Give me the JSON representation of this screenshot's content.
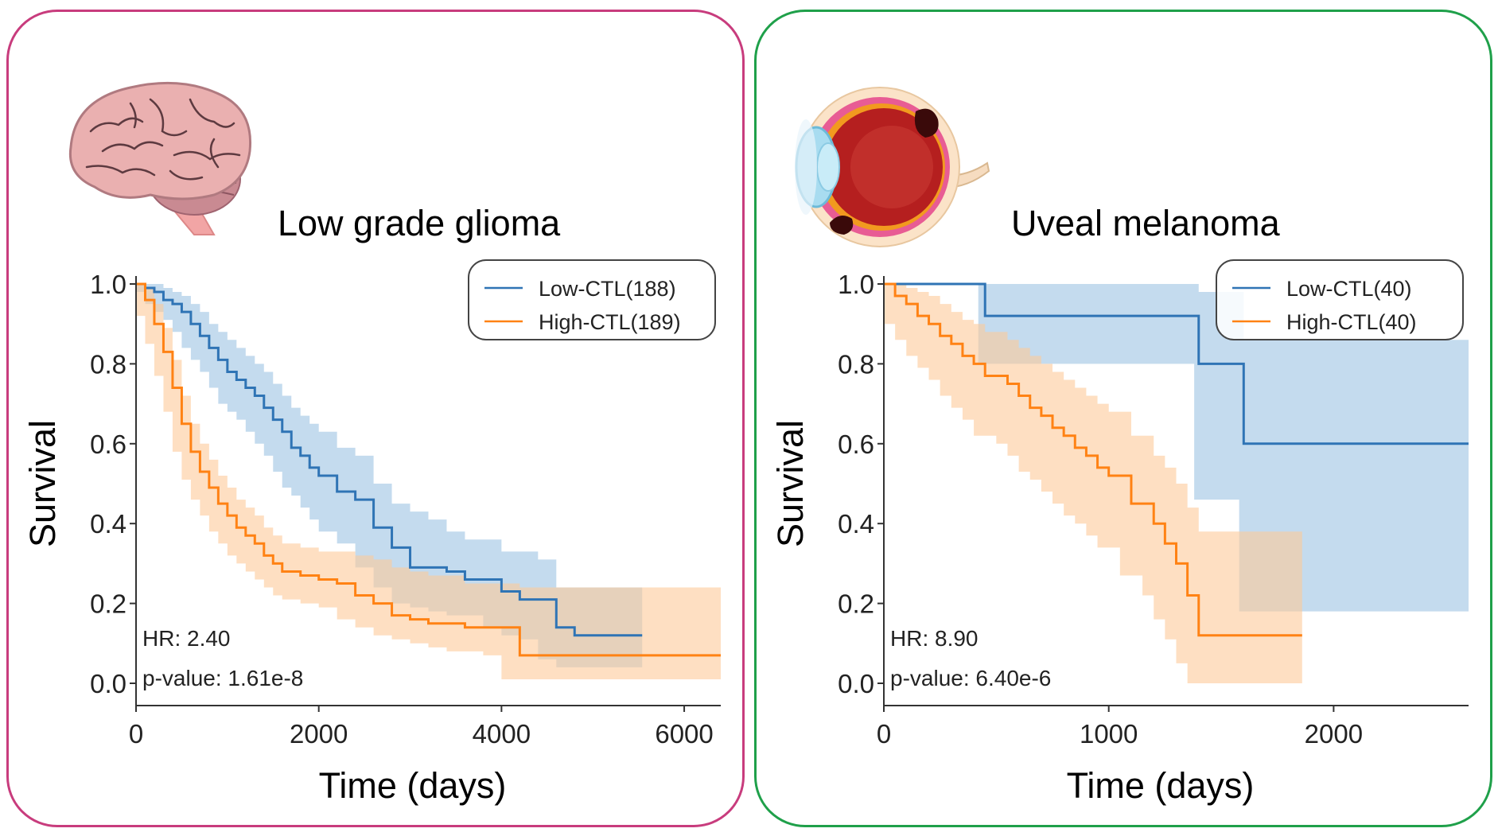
{
  "colors": {
    "low": "#2f74b5",
    "low_band": "#9dc3e3",
    "high": "#ff8214",
    "high_band": "#fdc99a",
    "left_border": "#c83c7d",
    "right_border": "#1fa04a"
  },
  "chart_data": [
    {
      "type": "line",
      "title": "Low grade glioma",
      "xlabel": "Time (days)",
      "ylabel": "Survival",
      "xlim": [
        0,
        6400
      ],
      "ylim": [
        0,
        1.0
      ],
      "xticks": [
        "0",
        "2000",
        "4000",
        "6000"
      ],
      "xtick_values": [
        0,
        2000,
        4000,
        6000
      ],
      "yticks": [
        "0.0",
        "0.2",
        "0.4",
        "0.6",
        "0.8",
        "1.0"
      ],
      "ytick_values": [
        0,
        0.2,
        0.4,
        0.6,
        0.8,
        1.0
      ],
      "legend": "top-right",
      "annotations": [
        "HR: 2.40",
        "p-value: 1.61e-8"
      ],
      "series": [
        {
          "name": "Low-CTL(188)",
          "x": [
            0,
            100,
            200,
            300,
            400,
            500,
            600,
            700,
            800,
            900,
            1000,
            1100,
            1200,
            1300,
            1400,
            1500,
            1600,
            1700,
            1800,
            1900,
            2000,
            2200,
            2400,
            2600,
            2800,
            3000,
            3200,
            3400,
            3600,
            3800,
            4000,
            4200,
            4400,
            4600,
            4800,
            5000,
            5200,
            5540
          ],
          "y": [
            1.0,
            0.99,
            0.98,
            0.96,
            0.95,
            0.93,
            0.9,
            0.87,
            0.84,
            0.81,
            0.78,
            0.76,
            0.74,
            0.72,
            0.69,
            0.66,
            0.63,
            0.59,
            0.57,
            0.54,
            0.52,
            0.48,
            0.46,
            0.39,
            0.34,
            0.29,
            0.29,
            0.28,
            0.26,
            0.26,
            0.23,
            0.21,
            0.21,
            0.14,
            0.12,
            0.12,
            0.12,
            0.12
          ],
          "upper": [
            1.0,
            1.0,
            1.0,
            0.99,
            0.98,
            0.97,
            0.95,
            0.93,
            0.9,
            0.88,
            0.86,
            0.84,
            0.82,
            0.8,
            0.78,
            0.75,
            0.72,
            0.69,
            0.67,
            0.65,
            0.63,
            0.59,
            0.57,
            0.5,
            0.45,
            0.43,
            0.41,
            0.38,
            0.36,
            0.36,
            0.33,
            0.33,
            0.31,
            0.24,
            0.24,
            0.24,
            0.24,
            0.24
          ],
          "lower": [
            1.0,
            0.98,
            0.95,
            0.93,
            0.91,
            0.88,
            0.84,
            0.81,
            0.78,
            0.74,
            0.7,
            0.68,
            0.66,
            0.63,
            0.6,
            0.57,
            0.53,
            0.49,
            0.47,
            0.44,
            0.41,
            0.38,
            0.35,
            0.29,
            0.24,
            0.2,
            0.19,
            0.18,
            0.17,
            0.17,
            0.14,
            0.12,
            0.11,
            0.06,
            0.04,
            0.04,
            0.04,
            0.04
          ]
        },
        {
          "name": "High-CTL(189)",
          "x": [
            0,
            100,
            200,
            300,
            400,
            500,
            600,
            700,
            800,
            900,
            1000,
            1100,
            1200,
            1300,
            1400,
            1500,
            1600,
            1800,
            2000,
            2200,
            2400,
            2600,
            2800,
            3000,
            3200,
            3400,
            3600,
            3800,
            4000,
            4200,
            4400,
            4600,
            4800,
            5000,
            5200,
            5500,
            6000,
            6400
          ],
          "y": [
            1.0,
            0.96,
            0.9,
            0.83,
            0.74,
            0.65,
            0.58,
            0.53,
            0.49,
            0.45,
            0.42,
            0.39,
            0.37,
            0.35,
            0.32,
            0.3,
            0.28,
            0.27,
            0.26,
            0.25,
            0.22,
            0.2,
            0.17,
            0.16,
            0.15,
            0.15,
            0.14,
            0.14,
            0.14,
            0.07,
            0.07,
            0.07,
            0.07,
            0.07,
            0.07,
            0.07,
            0.07,
            0.07
          ],
          "upper": [
            1.0,
            0.99,
            0.95,
            0.89,
            0.81,
            0.72,
            0.65,
            0.6,
            0.56,
            0.52,
            0.49,
            0.46,
            0.44,
            0.42,
            0.39,
            0.37,
            0.35,
            0.34,
            0.33,
            0.33,
            0.32,
            0.31,
            0.29,
            0.28,
            0.27,
            0.27,
            0.25,
            0.25,
            0.25,
            0.24,
            0.24,
            0.24,
            0.24,
            0.24,
            0.24,
            0.24,
            0.24,
            0.24
          ],
          "lower": [
            1.0,
            0.92,
            0.85,
            0.77,
            0.68,
            0.58,
            0.51,
            0.46,
            0.42,
            0.38,
            0.35,
            0.32,
            0.3,
            0.28,
            0.26,
            0.24,
            0.22,
            0.21,
            0.2,
            0.19,
            0.16,
            0.14,
            0.12,
            0.11,
            0.1,
            0.09,
            0.08,
            0.08,
            0.07,
            0.01,
            0.01,
            0.01,
            0.01,
            0.01,
            0.01,
            0.01,
            0.01,
            0.01
          ]
        }
      ]
    },
    {
      "type": "line",
      "title": "Uveal melanoma",
      "xlabel": "Time (days)",
      "ylabel": "Survival",
      "xlim": [
        0,
        2600
      ],
      "ylim": [
        0,
        1.0
      ],
      "xticks": [
        "0",
        "1000",
        "2000"
      ],
      "xtick_values": [
        0,
        1000,
        2000
      ],
      "yticks": [
        "0.0",
        "0.2",
        "0.4",
        "0.6",
        "0.8",
        "1.0"
      ],
      "ytick_values": [
        0,
        0.2,
        0.4,
        0.6,
        0.8,
        1.0
      ],
      "legend": "top-right",
      "annotations": [
        "HR: 8.90",
        "p-value: 6.40e-6"
      ],
      "series": [
        {
          "name": "Low-CTL(40)",
          "x": [
            0,
            420,
            450,
            1380,
            1400,
            1580,
            1600,
            2600
          ],
          "y": [
            1.0,
            1.0,
            0.92,
            0.92,
            0.8,
            0.8,
            0.6,
            0.6
          ],
          "upper": [
            1.0,
            1.0,
            1.0,
            1.0,
            0.98,
            0.98,
            0.86,
            0.86
          ],
          "lower": [
            1.0,
            1.0,
            0.8,
            0.8,
            0.46,
            0.46,
            0.18,
            0.18
          ]
        },
        {
          "name": "High-CTL(40)",
          "x": [
            0,
            50,
            100,
            150,
            200,
            250,
            300,
            350,
            400,
            450,
            500,
            550,
            600,
            650,
            700,
            750,
            800,
            850,
            900,
            950,
            1000,
            1050,
            1100,
            1150,
            1200,
            1250,
            1300,
            1350,
            1400,
            1860
          ],
          "y": [
            1.0,
            0.97,
            0.95,
            0.92,
            0.9,
            0.87,
            0.85,
            0.82,
            0.8,
            0.77,
            0.77,
            0.75,
            0.72,
            0.69,
            0.67,
            0.64,
            0.62,
            0.59,
            0.57,
            0.54,
            0.52,
            0.52,
            0.45,
            0.45,
            0.4,
            0.35,
            0.3,
            0.22,
            0.12,
            0.12
          ],
          "upper": [
            1.0,
            1.0,
            0.99,
            0.98,
            0.97,
            0.95,
            0.93,
            0.91,
            0.9,
            0.88,
            0.88,
            0.86,
            0.84,
            0.82,
            0.8,
            0.78,
            0.76,
            0.74,
            0.72,
            0.7,
            0.68,
            0.68,
            0.62,
            0.62,
            0.57,
            0.54,
            0.5,
            0.44,
            0.38,
            0.38
          ],
          "lower": [
            1.0,
            0.9,
            0.86,
            0.82,
            0.79,
            0.76,
            0.72,
            0.69,
            0.66,
            0.62,
            0.62,
            0.6,
            0.57,
            0.53,
            0.51,
            0.48,
            0.45,
            0.42,
            0.4,
            0.37,
            0.34,
            0.34,
            0.27,
            0.27,
            0.22,
            0.16,
            0.11,
            0.05,
            0.0,
            0.0
          ]
        }
      ]
    }
  ]
}
